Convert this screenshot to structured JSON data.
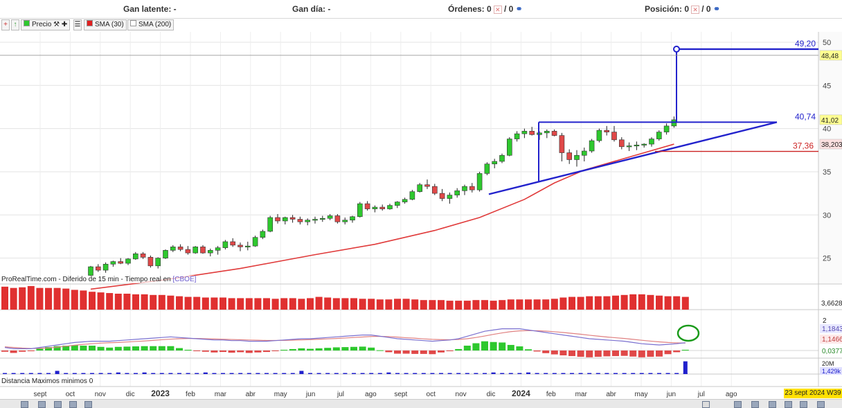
{
  "topbar": {
    "gan_latente": "Gan latente: -",
    "gan_dia": "Gan día: -",
    "ordenes": "Órdenes: 0",
    "posicion": "Posición: 0",
    "slash_zero": "/ 0"
  },
  "toolbar": {
    "precio": "Precio",
    "sma30": "SMA (30)",
    "sma200": "SMA (200)"
  },
  "source_text": "ProRealTime.com - Diferido de 15 min - Tiempo real en",
  "source_exchange": "[CBOE]",
  "distance_label": "Distancia Maximos minimos 0",
  "date_box": "23 sept 2024 W39",
  "colors": {
    "bull": "#2ec82e",
    "bear": "#e04848",
    "sma": "#e03a3a",
    "pattern": "#2222cc",
    "support": "#cc2222",
    "macd": "#7a70d0",
    "signal": "#e08080",
    "volume": "#e03030",
    "highlight": "#1a9a1a"
  },
  "chart_data": {
    "type": "candlestick",
    "price_axis": {
      "ticks": [
        25,
        30,
        35,
        40,
        45,
        50
      ],
      "range": [
        22,
        51.2
      ]
    },
    "time_axis": {
      "labels": [
        "sept",
        "oct",
        "nov",
        "dic",
        "2023",
        "feb",
        "mar",
        "abr",
        "may",
        "jun",
        "jul",
        "ago",
        "sept",
        "oct",
        "nov",
        "dic",
        "2024",
        "feb",
        "mar",
        "abr",
        "may",
        "jun",
        "jul",
        "ago"
      ],
      "bold_labels": [
        "2023",
        "2024"
      ]
    },
    "candles": [
      [
        23.0,
        24.1,
        22.8,
        24.0
      ],
      [
        24.0,
        24.3,
        23.4,
        23.6
      ],
      [
        23.6,
        24.5,
        23.3,
        24.3
      ],
      [
        24.3,
        24.7,
        24.0,
        24.6
      ],
      [
        24.6,
        25.0,
        24.3,
        24.4
      ],
      [
        24.4,
        25.0,
        24.2,
        24.9
      ],
      [
        24.9,
        25.7,
        24.8,
        25.5
      ],
      [
        25.5,
        25.7,
        24.9,
        25.1
      ],
      [
        25.1,
        25.3,
        23.9,
        24.1
      ],
      [
        24.1,
        25.1,
        23.8,
        25.0
      ],
      [
        25.0,
        26.0,
        24.9,
        25.9
      ],
      [
        25.9,
        26.5,
        25.7,
        26.3
      ],
      [
        26.3,
        26.6,
        25.8,
        26.0
      ],
      [
        26.0,
        26.4,
        25.4,
        25.6
      ],
      [
        25.6,
        26.4,
        25.5,
        26.3
      ],
      [
        26.3,
        26.5,
        25.5,
        25.6
      ],
      [
        25.6,
        26.1,
        25.2,
        25.9
      ],
      [
        25.9,
        26.4,
        25.4,
        26.2
      ],
      [
        26.2,
        27.1,
        26.0,
        26.9
      ],
      [
        26.9,
        27.3,
        26.3,
        26.5
      ],
      [
        26.5,
        26.8,
        25.8,
        26.3
      ],
      [
        26.3,
        26.9,
        25.9,
        26.4
      ],
      [
        26.4,
        27.6,
        26.3,
        27.4
      ],
      [
        27.4,
        28.3,
        27.2,
        28.1
      ],
      [
        28.1,
        29.9,
        28.0,
        29.7
      ],
      [
        29.7,
        30.1,
        29.0,
        29.3
      ],
      [
        29.3,
        29.8,
        28.9,
        29.7
      ],
      [
        29.7,
        30.0,
        29.1,
        29.5
      ],
      [
        29.5,
        29.8,
        28.9,
        29.2
      ],
      [
        29.2,
        29.6,
        28.8,
        29.4
      ],
      [
        29.4,
        29.8,
        29.0,
        29.5
      ],
      [
        29.5,
        29.9,
        29.2,
        29.6
      ],
      [
        29.6,
        30.1,
        29.4,
        29.9
      ],
      [
        29.9,
        30.1,
        29.0,
        29.2
      ],
      [
        29.2,
        29.7,
        28.9,
        29.4
      ],
      [
        29.4,
        29.9,
        29.1,
        29.8
      ],
      [
        29.8,
        31.5,
        29.7,
        31.3
      ],
      [
        31.3,
        31.6,
        30.5,
        30.7
      ],
      [
        30.7,
        31.1,
        30.3,
        30.9
      ],
      [
        30.9,
        31.2,
        30.5,
        30.7
      ],
      [
        30.7,
        31.3,
        30.6,
        31.1
      ],
      [
        31.1,
        31.6,
        30.8,
        31.5
      ],
      [
        31.5,
        32.0,
        31.3,
        31.8
      ],
      [
        31.8,
        32.9,
        31.7,
        32.7
      ],
      [
        32.7,
        33.7,
        32.6,
        33.5
      ],
      [
        33.5,
        34.1,
        33.0,
        33.3
      ],
      [
        33.3,
        33.6,
        32.3,
        32.5
      ],
      [
        32.5,
        33.0,
        31.6,
        31.9
      ],
      [
        31.9,
        32.6,
        31.3,
        32.3
      ],
      [
        32.3,
        33.1,
        32.0,
        32.8
      ],
      [
        32.8,
        33.5,
        32.3,
        33.3
      ],
      [
        33.3,
        33.7,
        32.6,
        32.9
      ],
      [
        32.9,
        35.0,
        32.7,
        34.8
      ],
      [
        34.8,
        36.1,
        34.6,
        35.9
      ],
      [
        35.9,
        36.5,
        35.4,
        36.2
      ],
      [
        36.2,
        37.1,
        36.0,
        36.9
      ],
      [
        36.9,
        39.0,
        36.8,
        38.8
      ],
      [
        38.8,
        39.7,
        38.5,
        39.4
      ],
      [
        39.4,
        40.0,
        38.9,
        39.7
      ],
      [
        39.7,
        40.2,
        39.2,
        39.3
      ],
      [
        39.3,
        39.7,
        38.7,
        39.5
      ],
      [
        39.5,
        39.9,
        38.9,
        39.7
      ],
      [
        39.7,
        39.9,
        39.1,
        39.2
      ],
      [
        39.2,
        39.5,
        36.2,
        37.2
      ],
      [
        37.2,
        37.6,
        35.9,
        36.4
      ],
      [
        36.4,
        37.5,
        35.6,
        36.9
      ],
      [
        36.9,
        37.8,
        36.2,
        37.4
      ],
      [
        37.4,
        38.8,
        37.2,
        38.6
      ],
      [
        38.6,
        40.0,
        38.4,
        39.8
      ],
      [
        39.8,
        40.3,
        39.2,
        39.6
      ],
      [
        39.6,
        40.3,
        38.5,
        38.7
      ],
      [
        38.7,
        39.0,
        37.6,
        37.9
      ],
      [
        37.9,
        38.4,
        37.4,
        38.0
      ],
      [
        38.0,
        38.5,
        37.5,
        38.1
      ],
      [
        38.1,
        38.3,
        37.8,
        38.2
      ],
      [
        38.2,
        39.0,
        37.9,
        38.8
      ],
      [
        38.8,
        39.8,
        38.6,
        39.6
      ],
      [
        39.6,
        40.6,
        39.3,
        40.3
      ],
      [
        40.3,
        41.4,
        40.1,
        41.02
      ]
    ],
    "sma30": [
      [
        0,
        21.4
      ],
      [
        10,
        22.5
      ],
      [
        20,
        23.8
      ],
      [
        30,
        25.4
      ],
      [
        38,
        26.6
      ],
      [
        46,
        28.2
      ],
      [
        52,
        29.7
      ],
      [
        58,
        31.8
      ],
      [
        62,
        33.7
      ],
      [
        66,
        35.2
      ],
      [
        72,
        36.7
      ],
      [
        78,
        38.2
      ]
    ],
    "pattern_lines": {
      "upper_level": 40.74,
      "lower_level": 37.36,
      "target_level": 49.2,
      "last_price": 41.02,
      "price_tags": [
        "48,48",
        "41,02",
        "38,203"
      ],
      "level_labels": [
        "49,20",
        "40,74",
        "37,36"
      ]
    },
    "volume": {
      "last_value": "3,6628",
      "values": [
        36,
        34,
        35,
        37,
        34,
        34,
        34,
        33,
        31,
        30,
        28,
        27,
        26,
        25,
        25,
        24,
        24,
        23,
        23,
        22,
        21,
        20,
        20,
        19,
        19,
        19,
        18,
        18,
        18,
        18,
        18,
        17,
        18,
        18,
        17,
        18,
        20,
        19,
        18,
        18,
        18,
        17,
        17,
        16,
        16,
        17,
        17,
        16,
        15,
        15,
        15,
        14,
        14,
        14,
        15,
        15,
        14,
        15,
        16,
        16,
        16,
        16,
        16,
        17,
        19,
        20,
        20,
        21,
        21,
        21,
        22,
        23,
        24,
        24,
        23,
        22,
        21,
        21,
        20
      ]
    },
    "macd": {
      "labels": [
        "1,1843",
        "1,1466",
        "0,0377",
        "2"
      ],
      "line": [
        0.8,
        0.7,
        0.7,
        0.7,
        0.8,
        0.9,
        1.0,
        1.1,
        1.2,
        1.25,
        1.3,
        1.3,
        1.3,
        1.35,
        1.4,
        1.45,
        1.5,
        1.55,
        1.6,
        1.65,
        1.6,
        1.55,
        1.5,
        1.45,
        1.4,
        1.4,
        1.35,
        1.35,
        1.3,
        1.3,
        1.3,
        1.35,
        1.4,
        1.45,
        1.5,
        1.5,
        1.55,
        1.6,
        1.65,
        1.7,
        1.75,
        1.8,
        1.8,
        1.7,
        1.6,
        1.5,
        1.45,
        1.4,
        1.35,
        1.3,
        1.35,
        1.4,
        1.5,
        1.7,
        1.9,
        2.1,
        2.2,
        2.3,
        2.3,
        2.3,
        2.2,
        2.1,
        2.0,
        1.9,
        1.8,
        1.7,
        1.6,
        1.5,
        1.45,
        1.4,
        1.35,
        1.3,
        1.2,
        1.1,
        1.05,
        1.0,
        1.05,
        1.1,
        1.18
      ],
      "signal": [
        0.85,
        0.8,
        0.75,
        0.72,
        0.73,
        0.76,
        0.82,
        0.9,
        0.98,
        1.05,
        1.1,
        1.15,
        1.18,
        1.2,
        1.24,
        1.28,
        1.32,
        1.37,
        1.42,
        1.47,
        1.5,
        1.52,
        1.52,
        1.5,
        1.48,
        1.46,
        1.44,
        1.42,
        1.4,
        1.38,
        1.36,
        1.36,
        1.37,
        1.39,
        1.41,
        1.43,
        1.46,
        1.49,
        1.52,
        1.56,
        1.6,
        1.64,
        1.68,
        1.69,
        1.67,
        1.63,
        1.58,
        1.54,
        1.49,
        1.45,
        1.43,
        1.42,
        1.44,
        1.5,
        1.6,
        1.72,
        1.85,
        1.97,
        2.07,
        2.13,
        2.15,
        2.14,
        2.11,
        2.06,
        2.0,
        1.93,
        1.86,
        1.78,
        1.71,
        1.64,
        1.58,
        1.52,
        1.45,
        1.38,
        1.31,
        1.25,
        1.2,
        1.17,
        1.15
      ]
    },
    "lower_indicator": {
      "labels": [
        "20M",
        "1,429k"
      ],
      "spikes": [
        [
          6,
          2
        ],
        [
          13,
          1
        ],
        [
          16,
          1
        ],
        [
          23,
          1
        ],
        [
          34,
          2
        ],
        [
          44,
          1
        ],
        [
          56,
          1
        ],
        [
          60,
          1
        ],
        [
          78,
          8
        ]
      ]
    }
  }
}
